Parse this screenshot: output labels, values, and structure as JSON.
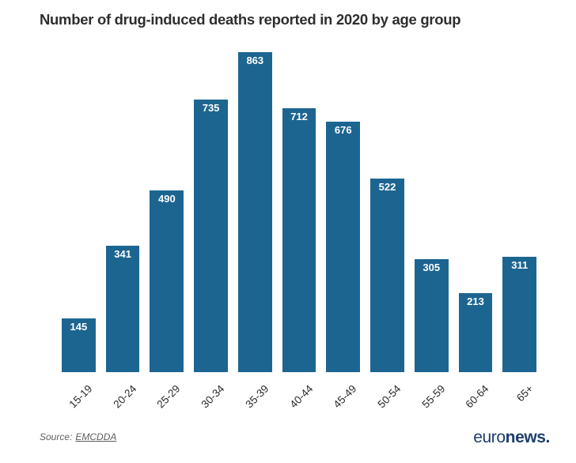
{
  "chart_data": {
    "type": "bar",
    "title": "Number of drug-induced deaths reported in 2020 by age group",
    "categories": [
      "15-19",
      "20-24",
      "25-29",
      "30-34",
      "35-39",
      "40-44",
      "45-49",
      "50-54",
      "55-59",
      "60-64",
      "65+"
    ],
    "values": [
      145,
      341,
      490,
      735,
      863,
      712,
      676,
      522,
      305,
      213,
      311
    ],
    "xlabel": "",
    "ylabel": "",
    "ylim": [
      0,
      863
    ],
    "grid": false,
    "legend": false,
    "bar_color": "#1d6591",
    "value_label_color": "#ffffff",
    "x_tick_rotation_deg": -45
  },
  "footer": {
    "source_prefix": "Source:",
    "source_link": "EMCDDA",
    "logo_euro": "euro",
    "logo_news": "news."
  }
}
